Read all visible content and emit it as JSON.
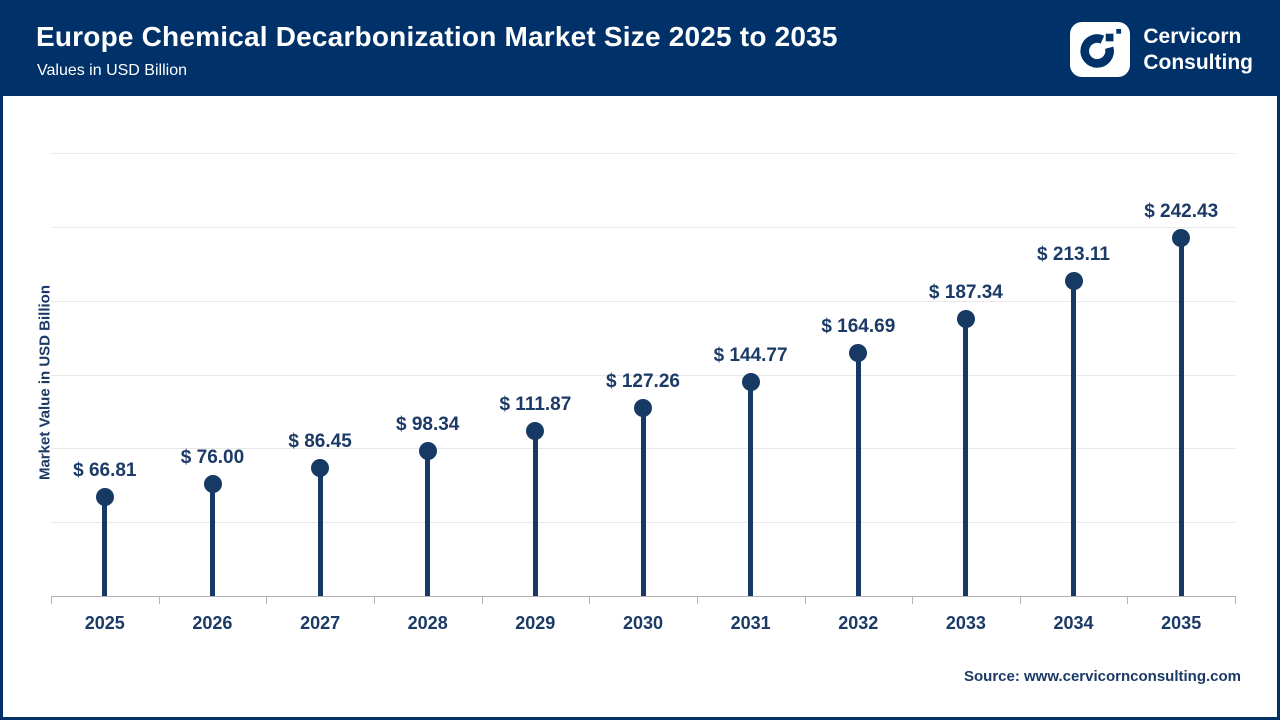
{
  "header": {
    "title": "Europe Chemical Decarbonization Market Size 2025 to 2035",
    "subtitle": "Values in USD Billion",
    "brand": {
      "line1": "Cervicorn",
      "line2": "Consulting"
    }
  },
  "chart_data": {
    "type": "lollipop",
    "title": "Europe Chemical Decarbonization Market Size 2025 to 2035",
    "subtitle": "Values in USD Billion",
    "xlabel": "",
    "ylabel": "Market Value in USD Billion",
    "categories": [
      "2025",
      "2026",
      "2027",
      "2028",
      "2029",
      "2030",
      "2031",
      "2032",
      "2033",
      "2034",
      "2035"
    ],
    "values": [
      66.81,
      76.0,
      86.45,
      98.34,
      111.87,
      127.26,
      144.77,
      164.69,
      187.34,
      213.11,
      242.43
    ],
    "value_labels": [
      "$ 66.81",
      "$ 76.00",
      "$ 86.45",
      "$ 98.34",
      "$ 111.87",
      "$ 127.26",
      "$ 144.77",
      "$ 164.69",
      "$ 187.34",
      "$ 213.11",
      "$ 242.43"
    ],
    "ylim": [
      0,
      300
    ],
    "gridline_step": 50,
    "grid": true,
    "legend": "none"
  },
  "footer": {
    "source": "Source: www.cervicornconsulting.com"
  },
  "colors": {
    "header_bg": "#003269",
    "border": "#003065",
    "accent": "#163a64",
    "label_text": "#1b3a66",
    "gridline": "#e8e8e8",
    "axis": "#b3b3b3",
    "background": "#ffffff",
    "title_text": "#ffffff"
  }
}
